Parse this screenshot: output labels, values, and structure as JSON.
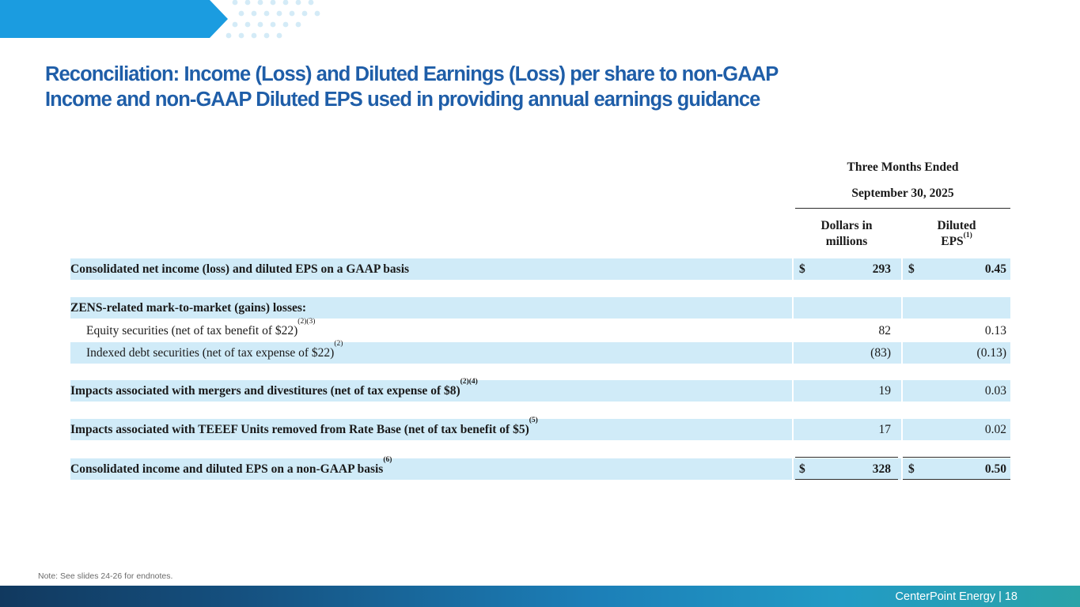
{
  "slide": {
    "title_line1": "Reconciliation: Income (Loss) and Diluted Earnings (Loss) per share to non-GAAP",
    "title_line2": "Income and non-GAAP Diluted EPS used in providing annual earnings guidance"
  },
  "table": {
    "period_label": "Three Months Ended",
    "period_date": "September 30, 2025",
    "col1_header_line1": "Dollars in",
    "col1_header_line2": "millions",
    "col2_header_line1": "Diluted",
    "col2_header_line2": "EPS",
    "col2_header_sup": "(1)",
    "rows": [
      {
        "label": "Consolidated net income (loss) and diluted EPS on a GAAP basis",
        "sup": "",
        "dollar_sign1": "$",
        "value1": "293",
        "dollar_sign2": "$",
        "value2": "0.45"
      },
      {
        "label": "ZENS-related mark-to-market (gains) losses:"
      },
      {
        "label": "Equity securities (net of tax benefit of $22)",
        "sup": "(2)(3)",
        "value1": "82",
        "value2": "0.13"
      },
      {
        "label": "Indexed debt securities (net of tax expense of $22)",
        "sup": "(2)",
        "value1": "(83)",
        "value2": "(0.13)"
      },
      {
        "label": "Impacts associated with mergers and divestitures (net of tax expense of $8)",
        "sup": "(2)(4)",
        "value1": "19",
        "value2": "0.03"
      },
      {
        "label": "Impacts associated with TEEEF Units removed from Rate Base (net of tax benefit of $5)",
        "sup": "(5)",
        "value1": "17",
        "value2": "0.02"
      },
      {
        "label": "Consolidated income and diluted EPS on a non-GAAP basis",
        "sup": "(6)",
        "dollar_sign1": "$",
        "value1": "328",
        "dollar_sign2": "$",
        "value2": "0.50"
      }
    ]
  },
  "note": "Note: See slides 24-26 for endnotes.",
  "footer": {
    "company": "CenterPoint Energy",
    "separator": "|",
    "page_number": "18"
  },
  "colors": {
    "title": "#1f5ea8",
    "row_band": "#d0ebf8",
    "accent_blue": "#1b9ce0",
    "dots": "#d4ebf7"
  }
}
